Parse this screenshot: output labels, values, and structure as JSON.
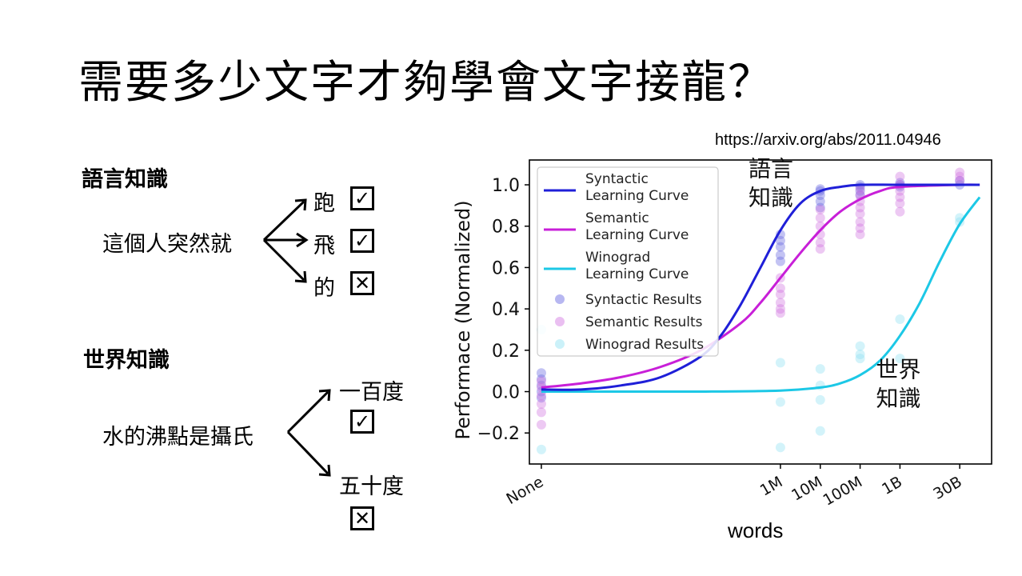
{
  "slide": {
    "title": "需要多少文字才夠學會文字接龍？",
    "url": "https://arxiv.org/abs/2011.04946"
  },
  "language_knowledge": {
    "heading": "語言知識",
    "prompt": "這個人突然就",
    "options": [
      {
        "text": "跑",
        "check": "✓"
      },
      {
        "text": "飛",
        "check": "✓"
      },
      {
        "text": "的",
        "check": "✕"
      }
    ]
  },
  "world_knowledge": {
    "heading": "世界知識",
    "prompt": "水的沸點是攝氏",
    "options": [
      {
        "text": "一百度",
        "check": "✓"
      },
      {
        "text": "五十度",
        "check": "✕"
      }
    ]
  },
  "chart_data": {
    "type": "line",
    "xlabel": "words",
    "ylabel": "Performace (Normalized)",
    "xcategories": [
      "None",
      "1M",
      "10M",
      "100M",
      "1B",
      "30B"
    ],
    "xvalues": [
      0,
      6,
      7,
      8,
      9,
      10.5
    ],
    "xlim": [
      -0.3,
      11.3
    ],
    "ylim": [
      -0.35,
      1.12
    ],
    "yticks": [
      -0.2,
      0.0,
      0.2,
      0.4,
      0.6,
      0.8,
      1.0
    ],
    "ytick_labels": [
      "−0.2",
      "0.0",
      "0.2",
      "0.4",
      "0.6",
      "0.8",
      "1.0"
    ],
    "grid": false,
    "legend_position": "top-left",
    "annotations": [
      {
        "text": "語言\n知識",
        "x": 5.2,
        "y": 1.04
      },
      {
        "text": "世界\n知識",
        "x": 8.4,
        "y": 0.07
      }
    ],
    "series": [
      {
        "name": "Syntactic Learning Curve",
        "kind": "line",
        "color": "#1f1fd8",
        "x": [
          0,
          1,
          2,
          3,
          4,
          4.5,
          5,
          5.5,
          6,
          6.5,
          7,
          7.5,
          8,
          9,
          10.5,
          11
        ],
        "y": [
          0.01,
          0.01,
          0.03,
          0.07,
          0.17,
          0.27,
          0.42,
          0.6,
          0.78,
          0.91,
          0.97,
          0.99,
          1.0,
          1.0,
          1.0,
          1.0
        ]
      },
      {
        "name": "Semantic Learning Curve",
        "kind": "line",
        "color": "#c81fd8",
        "x": [
          0,
          1,
          2,
          3,
          4,
          5,
          5.5,
          6,
          6.5,
          7,
          7.5,
          8,
          8.5,
          9,
          10.5,
          11
        ],
        "y": [
          0.02,
          0.04,
          0.07,
          0.12,
          0.2,
          0.33,
          0.43,
          0.55,
          0.67,
          0.78,
          0.87,
          0.93,
          0.97,
          0.99,
          1.0,
          1.0
        ]
      },
      {
        "name": "Winograd Learning Curve",
        "kind": "line",
        "color": "#1cc8e6",
        "x": [
          0,
          2,
          4,
          6,
          7,
          7.5,
          8,
          8.5,
          9,
          9.5,
          10,
          10.5,
          11
        ],
        "y": [
          0.0,
          0.0,
          0.0,
          0.005,
          0.02,
          0.04,
          0.08,
          0.15,
          0.27,
          0.43,
          0.63,
          0.81,
          0.94
        ]
      },
      {
        "name": "Syntactic Results",
        "kind": "scatter",
        "color": "#6060e0",
        "x": [
          0,
          0,
          0,
          0,
          0,
          6,
          6,
          6,
          6,
          6,
          7,
          7,
          7,
          7,
          7,
          8,
          8,
          8,
          8,
          9,
          9,
          9,
          10.5,
          10.5
        ],
        "y": [
          0.09,
          0.06,
          0.03,
          0.0,
          -0.03,
          0.76,
          0.73,
          0.7,
          0.66,
          0.63,
          0.98,
          0.97,
          0.95,
          0.92,
          0.89,
          1.0,
          0.99,
          0.97,
          0.95,
          1.0,
          1.01,
          0.99,
          1.02,
          1.0
        ]
      },
      {
        "name": "Semantic Results",
        "kind": "scatter",
        "color": "#d070e0",
        "x": [
          0,
          0,
          0,
          0,
          0,
          0,
          6,
          6,
          6,
          6,
          6,
          6,
          7,
          7,
          7,
          7,
          7,
          7,
          8,
          8,
          8,
          8,
          8,
          8,
          8,
          8,
          9,
          9,
          9,
          9,
          9,
          9,
          10.5,
          10.5,
          10.5
        ],
        "y": [
          0.05,
          0.02,
          -0.02,
          -0.06,
          -0.1,
          -0.16,
          0.55,
          0.5,
          0.47,
          0.43,
          0.4,
          0.38,
          0.88,
          0.84,
          0.8,
          0.76,
          0.72,
          0.69,
          0.98,
          0.95,
          0.92,
          0.89,
          0.86,
          0.82,
          0.79,
          0.76,
          1.04,
          1.0,
          0.97,
          0.94,
          0.91,
          0.87,
          1.06,
          1.04,
          1.02
        ]
      },
      {
        "name": "Winograd Results",
        "kind": "scatter",
        "color": "#8cdff2",
        "x": [
          0,
          0,
          6,
          6,
          6,
          7,
          7,
          7,
          7,
          8,
          8,
          8,
          9,
          9,
          10.5,
          10.5
        ],
        "y": [
          0.3,
          -0.28,
          0.14,
          -0.05,
          -0.27,
          0.11,
          0.03,
          -0.04,
          -0.19,
          0.22,
          0.18,
          0.16,
          0.35,
          0.16,
          0.82,
          0.84
        ]
      }
    ]
  }
}
